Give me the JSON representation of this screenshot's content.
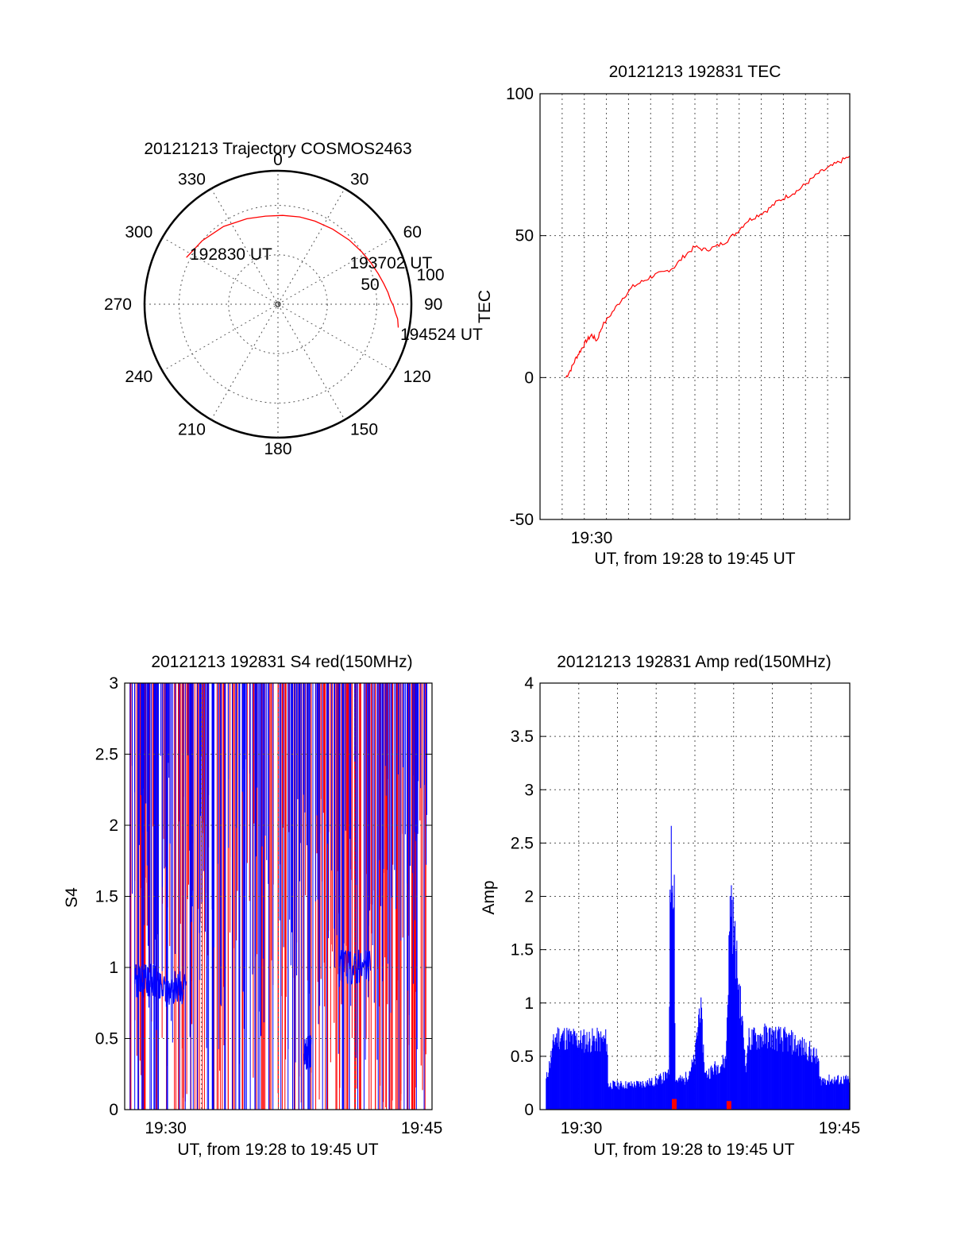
{
  "colors": {
    "red": "#ff0000",
    "blue": "#0000ff",
    "axis": "#000000"
  },
  "chart_data": [
    {
      "id": "polar",
      "type": "scatter",
      "title": "20121213 Trajectory COSMOS2463",
      "angle_labels": [
        "0",
        "30",
        "60",
        "90",
        "120",
        "150",
        "180",
        "210",
        "240",
        "270",
        "300",
        "330"
      ],
      "elevation_labels": [
        "50",
        "100"
      ],
      "elevation_values": [
        50,
        100
      ],
      "trajectory": {
        "azimuth": [
          297,
          310,
          325,
          340,
          352,
          3,
          14,
          24,
          36,
          48,
          58,
          66,
          73,
          79,
          84,
          88,
          91,
          94,
          97,
          101
        ],
        "radius": [
          104,
          100,
          96,
          92,
          90,
          90,
          91,
          92,
          94,
          97,
          100,
          103,
          106,
          109,
          112,
          114,
          117,
          119,
          122,
          124
        ]
      },
      "annotations": [
        {
          "text": "192830 UT",
          "azimuth": 300,
          "radius": 103
        },
        {
          "text": "193702 UT",
          "azimuth": 60,
          "radius": 95
        },
        {
          "text": "194524 UT",
          "azimuth": 100,
          "radius": 124
        }
      ]
    },
    {
      "id": "tec",
      "type": "line",
      "title": "20121213 192831 TEC",
      "xlabel": "UT, from 19:28 to 19:45 UT",
      "ylabel": "TEC",
      "xlim": [
        19.45,
        19.75
      ],
      "ylim": [
        -50,
        100
      ],
      "y_ticks": [
        "100",
        "50",
        "0",
        "-50"
      ],
      "y_tick_values": [
        100,
        50,
        0,
        -50
      ],
      "x_ticks": [
        "19:30"
      ],
      "x_tick_values": [
        19.5
      ],
      "series": [
        {
          "color": "red",
          "x": [
            19.475,
            19.48,
            19.485,
            19.49,
            19.495,
            19.5,
            19.505,
            19.51,
            19.52,
            19.53,
            19.54,
            19.55,
            19.56,
            19.57,
            19.58,
            19.59,
            19.6,
            19.61,
            19.62,
            19.63,
            19.64,
            19.65,
            19.66,
            19.67,
            19.68,
            19.69,
            19.7,
            19.71,
            19.72,
            19.73,
            19.74,
            19.75
          ],
          "y": [
            0,
            3,
            7,
            10,
            13,
            15,
            13,
            18,
            23,
            28,
            32,
            34,
            36,
            37,
            39,
            43,
            46,
            45,
            46,
            48,
            51,
            55,
            57,
            59,
            62,
            64,
            66,
            69,
            72,
            74,
            76,
            78
          ]
        }
      ]
    },
    {
      "id": "s4",
      "type": "line",
      "title": "20121213 192831 S4 red(150MHz)",
      "xlabel": "UT, from 19:28 to 19:45 UT",
      "ylabel": "S4",
      "xlim": [
        19.46,
        19.76
      ],
      "ylim": [
        0,
        3
      ],
      "y_ticks": [
        "3",
        "2.5",
        "2",
        "1.5",
        "1",
        "0.5",
        "0"
      ],
      "y_tick_values": [
        3,
        2.5,
        2,
        1.5,
        1,
        0.5,
        0
      ],
      "x_ticks": [
        "19:30",
        "19:45"
      ],
      "x_tick_values": [
        19.5,
        19.75
      ],
      "blue_segments": [
        {
          "from": 19.47,
          "to": 19.49,
          "level": 0.9
        },
        {
          "from": 19.49,
          "to": 19.52,
          "level": 0.85
        },
        {
          "from": 19.635,
          "to": 19.642,
          "level": 0.4
        },
        {
          "from": 19.67,
          "to": 19.7,
          "level": 1.0
        }
      ]
    },
    {
      "id": "amp",
      "type": "area",
      "title": "20121213 192831 Amp red(150MHz)",
      "xlabel": "UT, from 19:28 to 19:45 UT",
      "ylabel": "Amp",
      "xlim": [
        19.46,
        19.76
      ],
      "ylim": [
        0,
        4
      ],
      "y_ticks": [
        "4",
        "3.5",
        "3",
        "2.5",
        "2",
        "1.5",
        "1",
        "0.5",
        "0"
      ],
      "y_tick_values": [
        4,
        3.5,
        3,
        2.5,
        2,
        1.5,
        1,
        0.5,
        0
      ],
      "x_ticks": [
        "19:30",
        "19:45"
      ],
      "x_tick_values": [
        19.5,
        19.75
      ],
      "blue_envelope": {
        "x": [
          19.466,
          19.475,
          19.5,
          19.525,
          19.526,
          19.55,
          19.57,
          19.585,
          19.586,
          19.59,
          19.591,
          19.6,
          19.61,
          19.615,
          19.62,
          19.64,
          19.645,
          19.646,
          19.66,
          19.661,
          19.68,
          19.7,
          19.72,
          19.73,
          19.7301,
          19.76
        ],
        "y": [
          0.3,
          0.75,
          0.7,
          0.7,
          0.25,
          0.25,
          0.28,
          0.35,
          2.5,
          2.4,
          0.3,
          0.3,
          0.5,
          1.1,
          0.35,
          0.5,
          2.3,
          2.0,
          0.4,
          0.7,
          0.75,
          0.7,
          0.6,
          0.5,
          0.3,
          0.3
        ]
      },
      "red_bumps": [
        {
          "x": 19.59,
          "height": 0.1
        },
        {
          "x": 19.643,
          "height": 0.08
        }
      ]
    }
  ]
}
